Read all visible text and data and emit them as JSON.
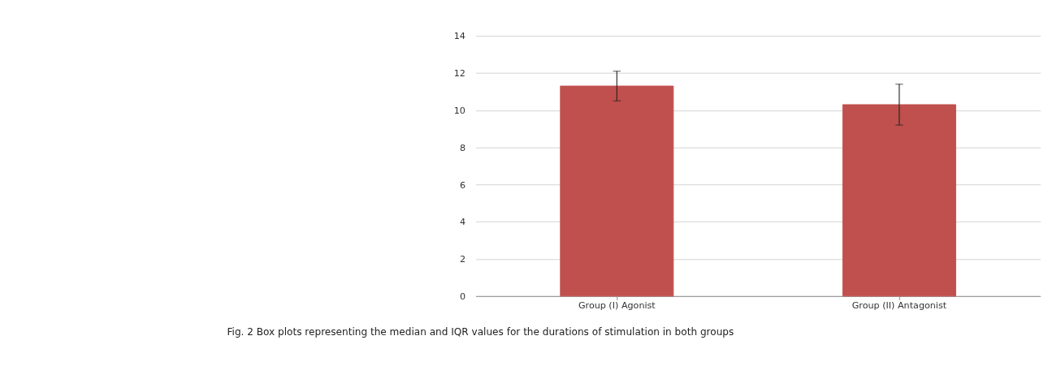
{
  "chart_data": {
    "type": "bar",
    "categories": [
      "Group (I) Agonist",
      "Group (II) Antagonist"
    ],
    "values": [
      11.3,
      10.3
    ],
    "errors": [
      [
        10.5,
        12.1
      ],
      [
        9.2,
        11.4
      ]
    ],
    "color": "#c0504d",
    "ylim": [
      0,
      14
    ],
    "yticks": [
      0,
      2,
      4,
      6,
      8,
      10,
      12,
      14
    ],
    "grid": "y",
    "annotations": [
      "Fig. 2 Box plots representing the median and IQR values for the durations of stimulation in both groups"
    ]
  }
}
